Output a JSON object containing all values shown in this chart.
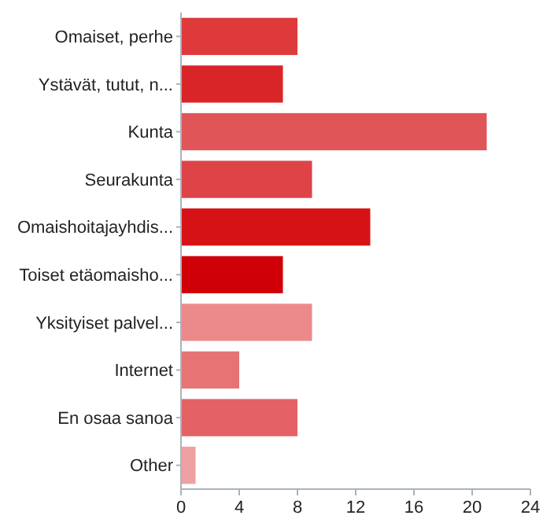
{
  "chart_data": {
    "type": "bar",
    "orientation": "horizontal",
    "categories": [
      "Omaiset, perhe",
      "Ystävät, tutut, n...",
      "Kunta",
      "Seurakunta",
      "Omaishoitajayhdis...",
      "Toiset etäomaisho...",
      "Yksityiset palvel...",
      "Internet",
      "En osaa sanoa",
      "Other"
    ],
    "values": [
      8,
      7,
      21,
      9,
      13,
      7,
      9,
      4,
      8,
      1
    ],
    "colors": [
      "#de3a3c",
      "#d92528",
      "#e05557",
      "#dd4347",
      "#d71216",
      "#cf0007",
      "#ec8a8b",
      "#e67474",
      "#e46165",
      "#efa0a2"
    ],
    "xlim": [
      0,
      24
    ],
    "xticks": [
      0,
      4,
      8,
      12,
      16,
      20,
      24
    ],
    "grid": false
  }
}
